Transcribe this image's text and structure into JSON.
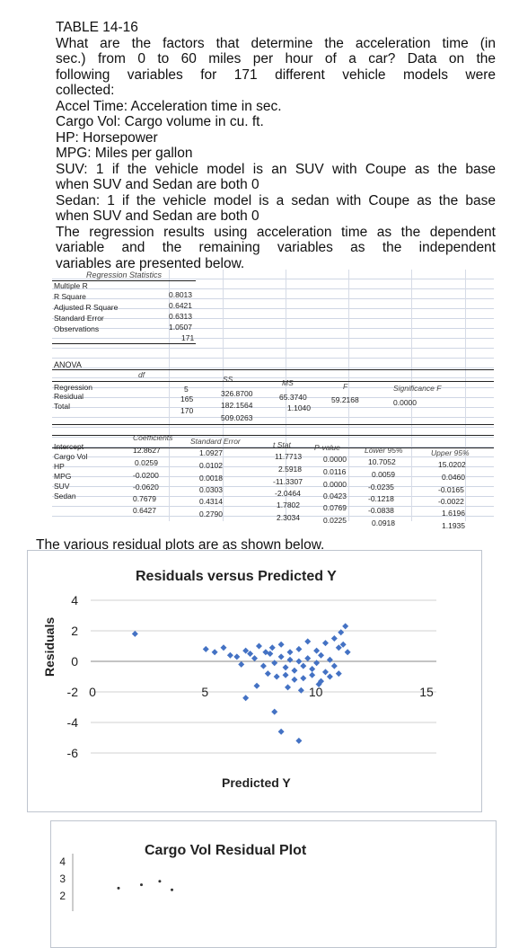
{
  "problem": {
    "lines": [
      "TABLE 14-16",
      "What are the factors that determine the acceleration time (in",
      "sec.) from 0 to 60 miles per hour of a car? Data on the",
      "following variables for 171 different vehicle models were",
      "collected:",
      "Accel Time: Acceleration time in sec.",
      "Cargo Vol: Cargo volume in cu. ft.",
      "HP: Horsepower",
      "MPG: Miles per gallon",
      "SUV: 1 if the vehicle model is an SUV with Coupe as the base",
      "when SUV and Sedan are both 0",
      "Sedan: 1 if the vehicle model is a sedan with Coupe as the base",
      "when SUV and Sedan are both 0",
      "The regression results using acceleration time as the dependent",
      "variable and the remaining variables as the independent",
      "variables are presented below."
    ]
  },
  "regression_statistics": {
    "title": "Regression Statistics",
    "rows": [
      {
        "label": "Multiple R",
        "value": "0.8013"
      },
      {
        "label": "R Square",
        "value": "0.6421"
      },
      {
        "label": "Adjusted R Square",
        "value": "0.6313"
      },
      {
        "label": "Standard Error",
        "value": "1.0507"
      },
      {
        "label": "Observations",
        "value": "171"
      }
    ]
  },
  "anova": {
    "title": "ANOVA",
    "headers": [
      "df",
      "SS",
      "MS",
      "F",
      "Significance F"
    ],
    "rows": [
      {
        "label": "Regression",
        "df": "5",
        "ss": "326.8700",
        "ms": "65.3740",
        "f": "59.2168",
        "sig": "0.0000"
      },
      {
        "label": "Residual",
        "df": "165",
        "ss": "182.1564",
        "ms": "1.1040",
        "f": "",
        "sig": ""
      },
      {
        "label": "Total",
        "df": "170",
        "ss": "509.0263",
        "ms": "",
        "f": "",
        "sig": ""
      }
    ]
  },
  "coefficients": {
    "headers": [
      "Coefficients",
      "Standard Error",
      "t Stat",
      "P-value",
      "Lower 95%",
      "Upper 95%"
    ],
    "rows": [
      {
        "label": "Intercept",
        "coef": "12.8627",
        "se": "1.0927",
        "t": "11.7713",
        "p": "0.0000",
        "lo": "10.7052",
        "hi": "15.0202"
      },
      {
        "label": "Cargo Vol",
        "coef": "0.0259",
        "se": "0.0102",
        "t": "2.5918",
        "p": "0.0116",
        "lo": "0.0059",
        "hi": "0.0460"
      },
      {
        "label": "HP",
        "coef": "-0.0200",
        "se": "0.0018",
        "t": "-11.3307",
        "p": "0.0000",
        "lo": "-0.0235",
        "hi": "-0.0165"
      },
      {
        "label": "MPG",
        "coef": "-0.0620",
        "se": "0.0303",
        "t": "-2.0464",
        "p": "0.0423",
        "lo": "-0.1218",
        "hi": "-0.0022"
      },
      {
        "label": "SUV",
        "coef": "0.7679",
        "se": "0.4314",
        "t": "1.7802",
        "p": "0.0769",
        "lo": "-0.0838",
        "hi": "1.6196"
      },
      {
        "label": "Sedan",
        "coef": "0.6427",
        "se": "0.2790",
        "t": "2.3034",
        "p": "0.0225",
        "lo": "0.0918",
        "hi": "1.1935"
      }
    ]
  },
  "residual_caption": "The various residual plots are as shown below.",
  "chart_data": [
    {
      "type": "scatter",
      "title": "Residuals versus Predicted Y",
      "xlabel": "Predicted Y",
      "ylabel": "Residuals",
      "xlim": [
        0,
        15
      ],
      "ylim": [
        -6,
        4
      ],
      "x_ticks": [
        "0",
        "5",
        "10",
        "15"
      ],
      "y_ticks": [
        "4",
        "2",
        "0",
        "-2",
        "-4",
        "-6"
      ],
      "marker_color": "#4472c4",
      "x": [
        2.0,
        5.2,
        5.6,
        6.0,
        6.3,
        6.6,
        7.0,
        7.2,
        7.6,
        7.9,
        6.8,
        7.4,
        7.8,
        8.1,
        8.3,
        8.6,
        8.8,
        9.0,
        9.2,
        9.4,
        9.6,
        9.8,
        10.0,
        10.2,
        10.4,
        10.6,
        10.8,
        11.0,
        8.0,
        8.4,
        8.8,
        9.2,
        9.6,
        10.0,
        10.4,
        10.8,
        11.2,
        8.2,
        8.6,
        9.0,
        9.4,
        9.8,
        10.2,
        10.6,
        11.0,
        11.3,
        11.5,
        11.2,
        11.4,
        11.6,
        7.5,
        8.9,
        9.5,
        10.3,
        7.0,
        8.3,
        8.6,
        9.4
      ],
      "y": [
        1.8,
        0.8,
        0.6,
        0.9,
        0.4,
        0.3,
        0.7,
        0.5,
        1.0,
        0.6,
        -0.2,
        0.2,
        -0.3,
        0.5,
        -0.1,
        0.3,
        -0.4,
        0.1,
        -0.6,
        0.0,
        -0.3,
        0.2,
        -0.5,
        -0.1,
        0.4,
        -0.7,
        0.1,
        -0.3,
        -0.8,
        -1.0,
        -0.9,
        -1.2,
        -1.1,
        -0.9,
        -1.3,
        -1.0,
        -0.8,
        0.9,
        1.1,
        0.6,
        0.8,
        1.3,
        0.7,
        1.2,
        1.5,
        1.9,
        2.3,
        0.9,
        1.1,
        0.6,
        -1.6,
        -1.7,
        -1.9,
        -1.5,
        -2.4,
        -3.3,
        -4.6,
        -5.2
      ]
    },
    {
      "type": "scatter",
      "title": "Cargo Vol  Residual Plot",
      "ylabel": "",
      "y_ticks": [
        "4",
        "3",
        "2"
      ],
      "marker_color": "#4472c4",
      "x": [
        3.0,
        4.5,
        5.7,
        6.5
      ],
      "y": [
        2.4,
        2.6,
        2.8,
        2.3
      ]
    }
  ]
}
